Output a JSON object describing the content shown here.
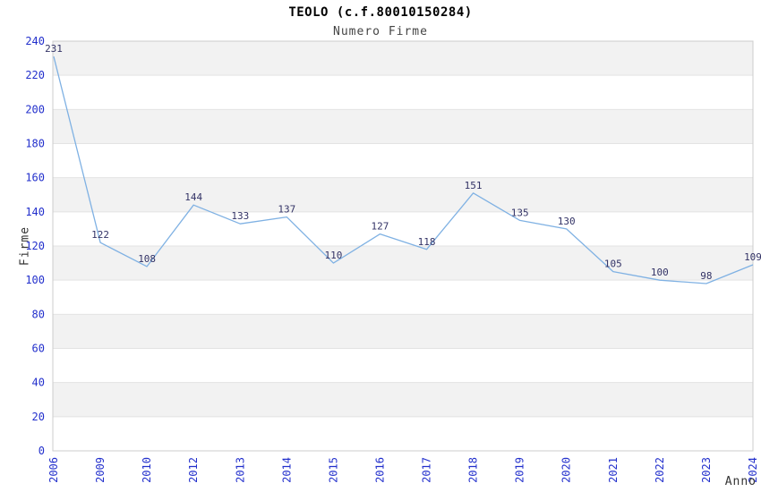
{
  "header": {
    "title": "TEOLO (c.f.80010150284)",
    "subtitle": "Numero Firme"
  },
  "chart_data": {
    "type": "line",
    "title": "TEOLO (c.f.80010150284)",
    "subtitle": "Numero Firme",
    "xlabel": "Anno",
    "ylabel": "Firme",
    "x": [
      "2006",
      "2009",
      "2010",
      "2012",
      "2013",
      "2014",
      "2015",
      "2016",
      "2017",
      "2018",
      "2019",
      "2020",
      "2021",
      "2022",
      "2023",
      "2024"
    ],
    "values": [
      231,
      122,
      108,
      144,
      133,
      137,
      110,
      127,
      118,
      151,
      135,
      130,
      105,
      100,
      98,
      109
    ],
    "ylim": [
      0,
      240
    ],
    "ytick_step": 20,
    "grid": true,
    "alternating_bands": true,
    "legend_position": "none",
    "point_labels_visible": true,
    "colors": {
      "line": "#7fb1e3",
      "tick_label": "#2330cc",
      "point_label": "#333366",
      "band_fill": "#f2f2f2",
      "grid_line": "#e3e3e3",
      "plot_border": "#cccccc",
      "title": "#000000",
      "subtitle": "#444444",
      "axis_title": "#333333"
    }
  }
}
